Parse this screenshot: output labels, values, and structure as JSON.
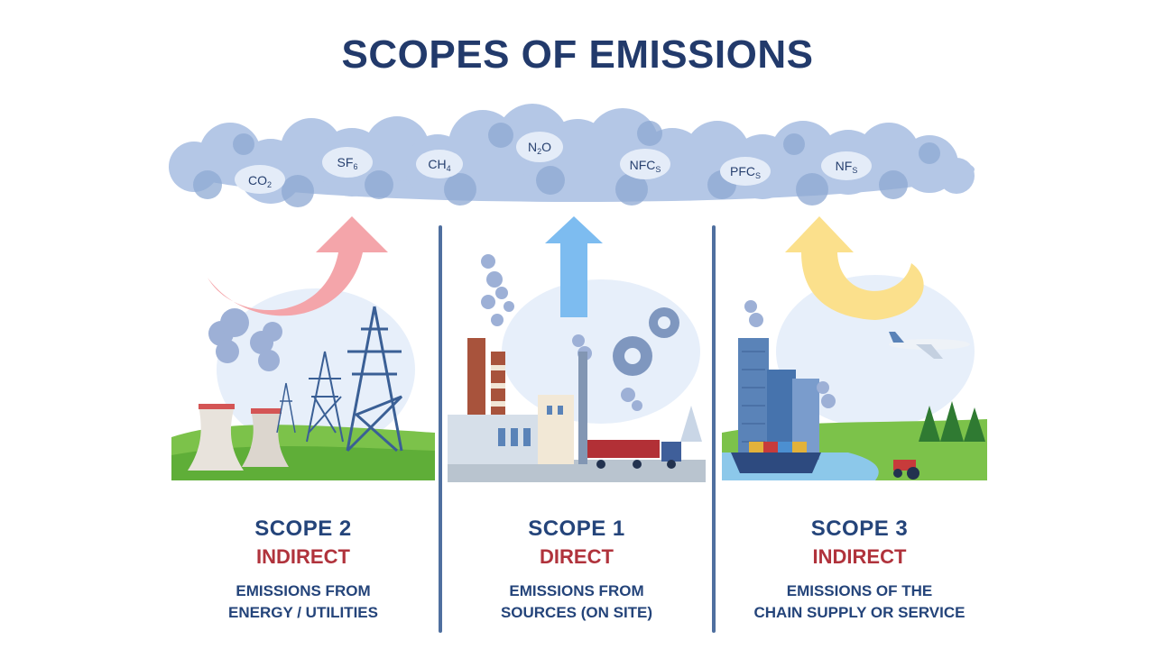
{
  "title": "SCOPES OF EMISSIONS",
  "gases": [
    {
      "main": "CO",
      "sub": "2",
      "tail": ""
    },
    {
      "main": "SF",
      "sub": "6",
      "tail": ""
    },
    {
      "main": "CH",
      "sub": "4",
      "tail": ""
    },
    {
      "main": "N",
      "sub": "2",
      "tail": "O"
    },
    {
      "main": "NFC",
      "sub": "S",
      "tail": ""
    },
    {
      "main": "PFC",
      "sub": "S",
      "tail": ""
    },
    {
      "main": "NF",
      "sub": "S",
      "tail": ""
    }
  ],
  "scopes": [
    {
      "title": "SCOPE 2",
      "type": "INDIRECT",
      "desc1": "EMISSIONS FROM",
      "desc2": "ENERGY / UTILITIES"
    },
    {
      "title": "SCOPE 1",
      "type": "DIRECT",
      "desc1": "EMISSIONS FROM",
      "desc2": "SOURCES (ON SITE)"
    },
    {
      "title": "SCOPE 3",
      "type": "INDIRECT",
      "desc1": "EMISSIONS OF THE",
      "desc2": "CHAIN SUPPLY OR SERVICE"
    }
  ],
  "colors": {
    "title": "#223a6b",
    "scope_type": "#b0333c",
    "cloud": "#a9bfe0",
    "arrow_scope2": "#f4a5aa",
    "arrow_scope1": "#7dbcf0",
    "arrow_scope3": "#fbe08c",
    "divider": "#4f6f9f"
  }
}
